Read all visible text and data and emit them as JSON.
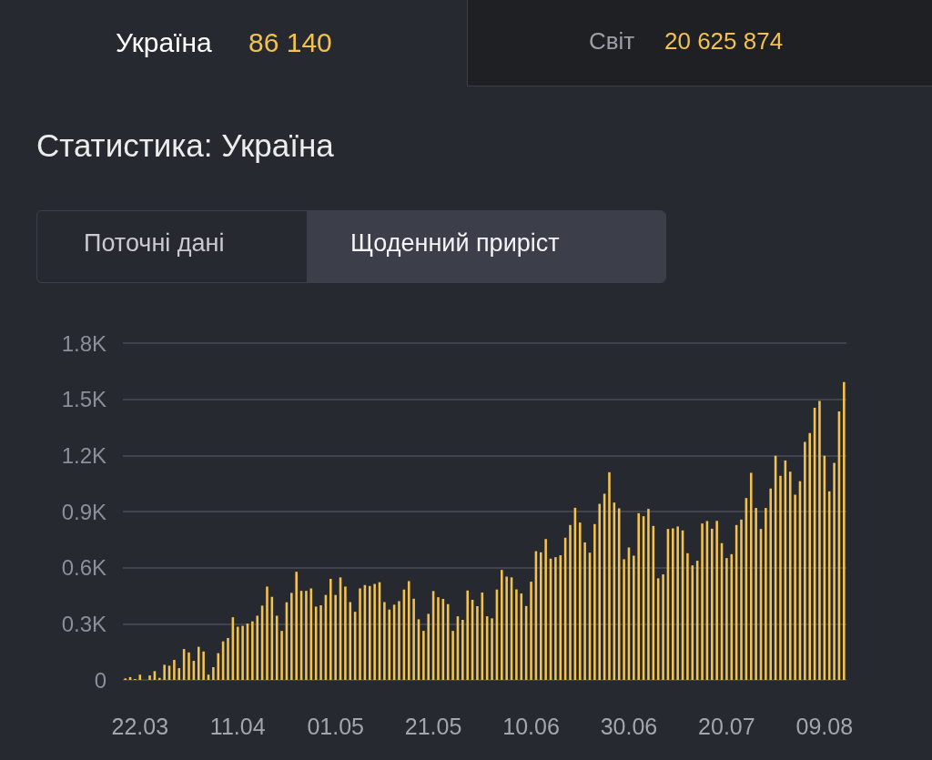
{
  "chart_data": {
    "type": "bar",
    "title": "Статистика: Україна",
    "annotations": [
      "Україна",
      "86 140",
      "Світ",
      "20 625 874",
      "Поточні дані",
      "Щоденний приріст"
    ],
    "categories": [
      null,
      null,
      null,
      "22.03",
      null,
      null,
      null,
      null,
      null,
      null,
      null,
      null,
      null,
      null,
      null,
      null,
      null,
      null,
      null,
      null,
      null,
      null,
      null,
      "11.04",
      null,
      null,
      null,
      null,
      null,
      null,
      null,
      null,
      null,
      null,
      null,
      null,
      null,
      null,
      null,
      null,
      null,
      null,
      null,
      "01.05",
      null,
      null,
      null,
      null,
      null,
      null,
      null,
      null,
      null,
      null,
      null,
      null,
      null,
      null,
      null,
      null,
      null,
      null,
      null,
      "21.05",
      null,
      null,
      null,
      null,
      null,
      null,
      null,
      null,
      null,
      null,
      null,
      null,
      null,
      null,
      null,
      null,
      null,
      null,
      null,
      "10.06",
      null,
      null,
      null,
      null,
      null,
      null,
      null,
      null,
      null,
      null,
      null,
      null,
      null,
      null,
      null,
      null,
      null,
      null,
      null,
      "30.06",
      null,
      null,
      null,
      null,
      null,
      null,
      null,
      null,
      null,
      null,
      null,
      null,
      null,
      null,
      null,
      null,
      null,
      null,
      null,
      "20.07",
      null,
      null,
      null,
      null,
      null,
      null,
      null,
      null,
      null,
      null,
      null,
      null,
      null,
      null,
      null,
      null,
      null,
      null,
      null,
      "09.08",
      null,
      null,
      null,
      null
    ],
    "values": [
      8,
      15,
      5,
      28,
      0,
      24,
      47,
      11,
      81,
      76,
      107,
      63,
      165,
      147,
      102,
      177,
      152,
      28,
      68,
      143,
      206,
      224,
      335,
      284,
      289,
      301,
      313,
      343,
      397,
      499,
      444,
      343,
      262,
      415,
      465,
      578,
      476,
      476,
      489,
      392,
      399,
      454,
      540,
      454,
      548,
      499,
      416,
      364,
      489,
      507,
      502,
      513,
      522,
      416,
      376,
      402,
      421,
      483,
      528,
      434,
      324,
      262,
      353,
      475,
      442,
      433,
      405,
      262,
      340,
      321,
      478,
      428,
      394,
      467,
      340,
      329,
      483,
      588,
      552,
      548,
      484,
      462,
      395,
      525,
      688,
      682,
      753,
      648,
      656,
      666,
      760,
      828,
      920,
      841,
      735,
      680,
      833,
      941,
      995,
      1110,
      948,
      917,
      645,
      708,
      664,
      891,
      875,
      914,
      823,
      543,
      564,
      807,
      810,
      820,
      799,
      677,
      612,
      637,
      836,
      849,
      808,
      850,
      731,
      651,
      672,
      828,
      857,
      972,
      1107,
      919,
      807,
      919,
      1023,
      1198,
      1091,
      1173,
      1113,
      990,
      1062,
      1272,
      1319,
      1454,
      1491,
      1198,
      1008,
      1160,
      1435,
      1592
    ],
    "color": "#f2c14e",
    "ylim": [
      0,
      1800
    ],
    "yticks": [
      0,
      {
        "value": 300,
        "label": "0.3K"
      },
      {
        "value": 600,
        "label": "0.6K"
      },
      {
        "value": 900,
        "label": "0.9K"
      },
      {
        "value": 1200,
        "label": "1.2K"
      },
      {
        "value": 1500,
        "label": "1.5K"
      },
      {
        "value": 1800,
        "label": "1.8K"
      }
    ],
    "grid": "y"
  }
}
